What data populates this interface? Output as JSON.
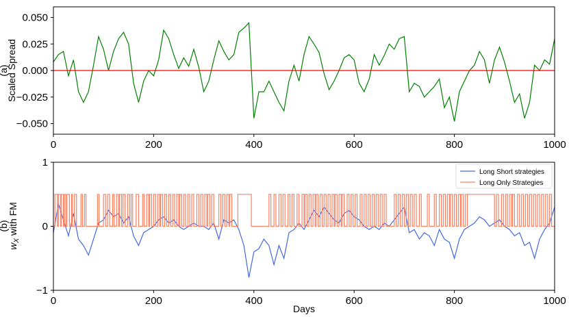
{
  "chart_data": [
    {
      "type": "line",
      "panel": "(a)",
      "ylabel": "Scaled Spread",
      "xlabel": "",
      "xlim": [
        0,
        1000
      ],
      "ylim": [
        -0.06,
        0.06
      ],
      "x_ticks": [
        0,
        200,
        400,
        600,
        800,
        1000
      ],
      "y_ticks": [
        0.05,
        0.025,
        0.0,
        -0.025,
        -0.05
      ],
      "y_tick_labels": [
        "0.050",
        "0.025",
        "0.000",
        "−0.025",
        "−0.050"
      ],
      "grid": false,
      "legend": null,
      "series": [
        {
          "color": "#008000",
          "x": [
            0,
            10,
            20,
            30,
            40,
            50,
            60,
            70,
            80,
            90,
            100,
            110,
            120,
            130,
            140,
            150,
            160,
            170,
            180,
            190,
            200,
            210,
            220,
            230,
            240,
            250,
            260,
            270,
            280,
            290,
            300,
            310,
            320,
            330,
            340,
            350,
            360,
            370,
            380,
            390,
            400,
            410,
            420,
            430,
            440,
            450,
            460,
            470,
            480,
            490,
            500,
            510,
            520,
            530,
            540,
            550,
            560,
            570,
            580,
            590,
            600,
            610,
            620,
            630,
            640,
            650,
            660,
            670,
            680,
            690,
            700,
            710,
            720,
            730,
            740,
            750,
            760,
            770,
            780,
            790,
            800,
            810,
            820,
            830,
            840,
            850,
            860,
            870,
            880,
            890,
            900,
            910,
            920,
            930,
            940,
            950,
            960,
            970,
            980,
            990,
            1000
          ],
          "values": [
            0.008,
            0.015,
            0.018,
            -0.005,
            0.01,
            -0.02,
            -0.03,
            -0.02,
            0.005,
            0.032,
            0.02,
            0.0,
            0.018,
            0.03,
            0.036,
            0.025,
            -0.012,
            -0.03,
            -0.01,
            0.0,
            -0.005,
            0.01,
            0.038,
            0.03,
            0.015,
            0.002,
            0.012,
            0.004,
            0.02,
            0.003,
            -0.02,
            -0.01,
            0.01,
            0.028,
            0.018,
            0.01,
            0.015,
            0.036,
            0.04,
            0.045,
            -0.045,
            -0.02,
            -0.02,
            -0.01,
            -0.02,
            -0.03,
            -0.038,
            -0.01,
            0.005,
            -0.01,
            0.015,
            0.032,
            0.025,
            0.017,
            -0.003,
            -0.018,
            -0.01,
            0.0,
            0.012,
            0.015,
            0.01,
            -0.012,
            -0.02,
            -0.008,
            0.015,
            0.005,
            0.014,
            0.025,
            0.02,
            0.03,
            0.032,
            -0.02,
            -0.012,
            -0.015,
            -0.025,
            -0.02,
            -0.015,
            -0.008,
            -0.035,
            -0.025,
            -0.048,
            -0.02,
            -0.01,
            0.0,
            0.005,
            0.018,
            0.01,
            -0.012,
            0.01,
            0.022,
            0.008,
            -0.01,
            -0.03,
            -0.022,
            -0.045,
            -0.03,
            0.005,
            0.0,
            0.01,
            0.006,
            0.03
          ]
        },
        {
          "color": "#ff0000",
          "x": [
            0,
            1000
          ],
          "values": [
            0.0,
            0.0
          ]
        }
      ]
    },
    {
      "type": "line",
      "panel": "(b)",
      "ylabel": "w_X with FM",
      "ylabel_main": "w",
      "ylabel_sub": "X",
      "ylabel_rest": " with FM",
      "xlabel": "Days",
      "xlim": [
        0,
        1000
      ],
      "ylim": [
        -1,
        1
      ],
      "x_ticks": [
        0,
        200,
        400,
        600,
        800,
        1000
      ],
      "y_ticks": [
        1,
        0,
        -1
      ],
      "y_tick_labels": [
        "1",
        "0",
        "−1"
      ],
      "grid": false,
      "legend": "top-right",
      "series": [
        {
          "name": "Long Short strategies",
          "color": "#4169e1",
          "x": [
            0,
            10,
            20,
            30,
            40,
            50,
            60,
            70,
            80,
            90,
            100,
            110,
            120,
            130,
            140,
            150,
            160,
            170,
            180,
            190,
            200,
            210,
            220,
            230,
            240,
            250,
            260,
            270,
            280,
            290,
            300,
            310,
            320,
            330,
            340,
            350,
            360,
            370,
            380,
            390,
            400,
            410,
            420,
            430,
            440,
            450,
            460,
            470,
            480,
            490,
            500,
            510,
            520,
            530,
            540,
            550,
            560,
            570,
            580,
            590,
            600,
            610,
            620,
            630,
            640,
            650,
            660,
            670,
            680,
            690,
            700,
            710,
            720,
            730,
            740,
            750,
            760,
            770,
            780,
            790,
            800,
            810,
            820,
            830,
            840,
            850,
            860,
            870,
            880,
            890,
            900,
            910,
            920,
            930,
            940,
            950,
            960,
            970,
            980,
            990,
            1000
          ],
          "values": [
            -0.1,
            0.35,
            0.1,
            -0.15,
            0.2,
            -0.2,
            -0.3,
            -0.45,
            -0.2,
            0.05,
            0.1,
            0.25,
            0.15,
            0.2,
            0.05,
            0.15,
            -0.15,
            -0.3,
            -0.1,
            -0.05,
            0.0,
            0.1,
            0.15,
            0.05,
            0.1,
            0.0,
            -0.05,
            0.0,
            0.05,
            0.0,
            0.0,
            -0.05,
            0.05,
            -0.2,
            0.1,
            0.05,
            0.1,
            -0.05,
            -0.3,
            -0.8,
            -0.4,
            -0.35,
            -0.2,
            -0.3,
            -0.6,
            -0.3,
            -0.5,
            -0.1,
            -0.05,
            0.05,
            -0.05,
            0.1,
            0.25,
            0.15,
            0.3,
            0.2,
            0.1,
            0.05,
            0.2,
            0.25,
            0.15,
            0.1,
            0.0,
            -0.05,
            0.0,
            -0.05,
            0.05,
            0.0,
            0.1,
            0.2,
            0.3,
            -0.1,
            -0.05,
            -0.2,
            -0.1,
            -0.15,
            -0.3,
            -0.05,
            -0.2,
            -0.25,
            -0.5,
            -0.2,
            -0.05,
            0.0,
            0.05,
            0.15,
            0.1,
            0.0,
            0.05,
            0.1,
            0.0,
            -0.05,
            -0.15,
            -0.1,
            -0.3,
            -0.25,
            -0.5,
            -0.2,
            -0.05,
            0.05,
            0.3
          ]
        },
        {
          "name": "Long Only Strategies",
          "color": "#fa8060",
          "step": true,
          "levels": [
            0,
            0.5
          ],
          "high_intervals": [
            [
              3,
              8
            ],
            [
              10,
              14
            ],
            [
              16,
              20
            ],
            [
              22,
              25
            ],
            [
              27,
              32
            ],
            [
              36,
              38
            ],
            [
              42,
              46
            ],
            [
              55,
              58
            ],
            [
              62,
              65
            ],
            [
              88,
              91
            ],
            [
              100,
              104
            ],
            [
              108,
              112
            ],
            [
              118,
              121
            ],
            [
              126,
              130
            ],
            [
              132,
              136
            ],
            [
              139,
              143
            ],
            [
              148,
              152
            ],
            [
              155,
              158
            ],
            [
              165,
              170
            ],
            [
              178,
              181
            ],
            [
              186,
              190
            ],
            [
              192,
              196
            ],
            [
              200,
              204
            ],
            [
              208,
              212
            ],
            [
              214,
              218
            ],
            [
              222,
              226
            ],
            [
              230,
              234
            ],
            [
              238,
              242
            ],
            [
              246,
              250
            ],
            [
              252,
              256
            ],
            [
              260,
              264
            ],
            [
              268,
              272
            ],
            [
              276,
              280
            ],
            [
              286,
              290
            ],
            [
              294,
              298
            ],
            [
              302,
              306
            ],
            [
              308,
              312
            ],
            [
              316,
              320
            ],
            [
              330,
              334
            ],
            [
              338,
              342
            ],
            [
              346,
              350
            ],
            [
              352,
              356
            ],
            [
              368,
              395
            ],
            [
              430,
              434
            ],
            [
              440,
              444
            ],
            [
              450,
              454
            ],
            [
              458,
              462
            ],
            [
              468,
              472
            ],
            [
              476,
              480
            ],
            [
              486,
              490
            ],
            [
              496,
              500
            ],
            [
              502,
              506
            ],
            [
              510,
              514
            ],
            [
              518,
              522
            ],
            [
              524,
              528
            ],
            [
              532,
              536
            ],
            [
              540,
              544
            ],
            [
              548,
              552
            ],
            [
              556,
              560
            ],
            [
              562,
              566
            ],
            [
              570,
              574
            ],
            [
              576,
              580
            ],
            [
              586,
              590
            ],
            [
              594,
              598
            ],
            [
              602,
              606
            ],
            [
              612,
              616
            ],
            [
              620,
              624
            ],
            [
              628,
              632
            ],
            [
              636,
              640
            ],
            [
              644,
              648
            ],
            [
              652,
              656
            ],
            [
              660,
              664
            ],
            [
              680,
              684
            ],
            [
              688,
              692
            ],
            [
              696,
              700
            ],
            [
              704,
              708
            ],
            [
              712,
              716
            ],
            [
              720,
              724
            ],
            [
              730,
              734
            ],
            [
              746,
              750
            ],
            [
              760,
              764
            ],
            [
              770,
              774
            ],
            [
              778,
              782
            ],
            [
              786,
              790
            ],
            [
              792,
              796
            ],
            [
              800,
              804
            ],
            [
              808,
              812
            ],
            [
              814,
              818
            ],
            [
              822,
              826
            ],
            [
              826,
              880
            ],
            [
              884,
              888
            ],
            [
              894,
              898
            ],
            [
              902,
              906
            ],
            [
              910,
              914
            ],
            [
              916,
              920
            ],
            [
              926,
              930
            ],
            [
              934,
              938
            ],
            [
              942,
              946
            ],
            [
              950,
              954
            ],
            [
              958,
              962
            ],
            [
              966,
              970
            ],
            [
              974,
              978
            ],
            [
              982,
              986
            ],
            [
              990,
              994
            ]
          ]
        }
      ]
    }
  ]
}
